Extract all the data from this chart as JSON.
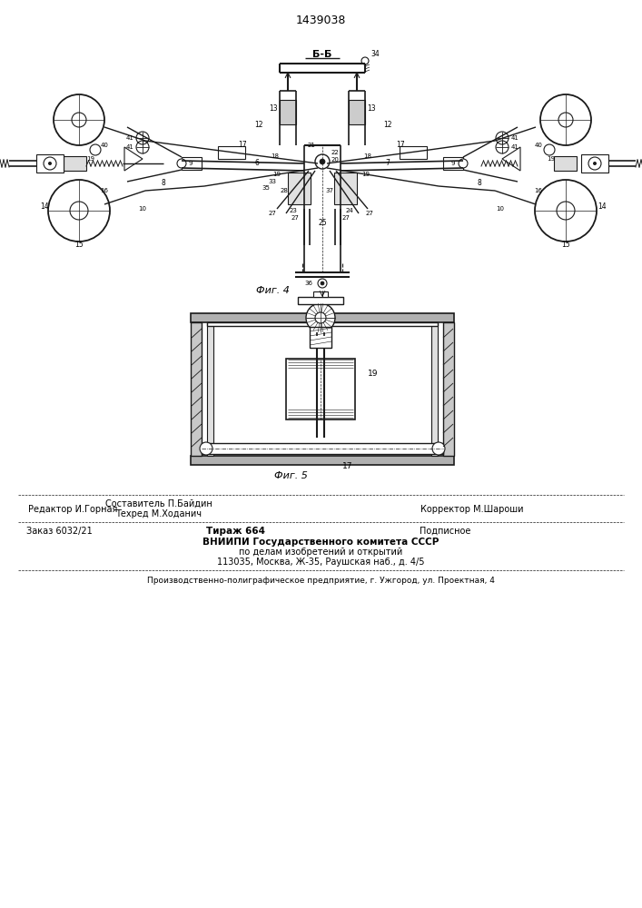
{
  "patent_number": "1439038",
  "fig4_label": "Фиг. 4",
  "fig5_label": "Фиг. 5",
  "editor_line": "Редактор И.Горная",
  "compiler_line1": "Составитель П.Байдин",
  "compiler_line2": "Техред М.Ходанич",
  "corrector_line": "Корректор М.Шароши",
  "order_line": "Заказ 6032/21",
  "tirazh_line": "Тираж 664",
  "podpisnoe_line": "Подписное",
  "org_line1": "ВНИИПИ Государственного комитета СССР",
  "org_line2": "по делам изобретений и открытий",
  "org_line3": "113035, Москва, Ж-35, Раушская наб., д. 4/5",
  "printer_line": "Производственно-полиграфическое предприятие, г. Ужгород, ул. Проектная, 4",
  "section_label": "Б-Б",
  "bg_color": "#ffffff",
  "line_color": "#000000",
  "text_color": "#000000"
}
